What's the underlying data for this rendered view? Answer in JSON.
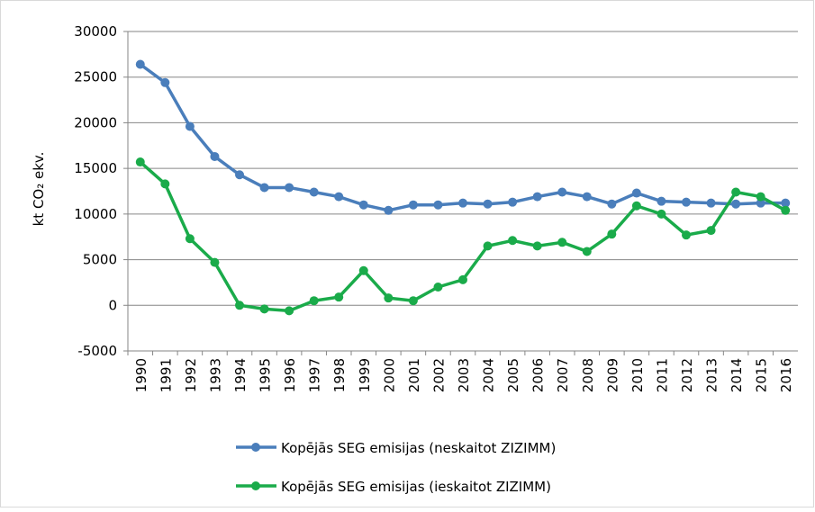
{
  "chart_data": {
    "type": "line",
    "y_label": "kt CO₂ ekv.",
    "categories": [
      "1990",
      "1991",
      "1992",
      "1993",
      "1994",
      "1995",
      "1996",
      "1997",
      "1998",
      "1999",
      "2000",
      "2001",
      "2002",
      "2003",
      "2004",
      "2005",
      "2006",
      "2007",
      "2008",
      "2009",
      "2010",
      "2011",
      "2012",
      "2013",
      "2014",
      "2015",
      "2016"
    ],
    "series": [
      {
        "name": "Kopējās SEG emisijas (neskaitot ZIZIMM)",
        "color": "#4a7ebb",
        "values": [
          26400,
          24400,
          19600,
          16300,
          14300,
          12900,
          12900,
          12400,
          11900,
          11000,
          10400,
          11000,
          11000,
          11200,
          11100,
          11300,
          11900,
          12400,
          11900,
          11100,
          12300,
          11400,
          11300,
          11200,
          11100,
          11200,
          11200
        ]
      },
      {
        "name": "Kopējās SEG emisijas (ieskaitot ZIZIMM)",
        "color": "#1aab4a",
        "values": [
          15700,
          13300,
          7300,
          4700,
          0,
          -400,
          -600,
          500,
          900,
          3800,
          800,
          500,
          2000,
          2800,
          6500,
          7100,
          6500,
          6900,
          5900,
          7800,
          10900,
          10000,
          7700,
          8200,
          12400,
          11900,
          10400
        ]
      }
    ],
    "ylim": [
      -5000,
      30000
    ],
    "yticks": [
      -5000,
      0,
      5000,
      10000,
      15000,
      20000,
      25000,
      30000
    ],
    "grid": true,
    "legend": "bottom"
  }
}
